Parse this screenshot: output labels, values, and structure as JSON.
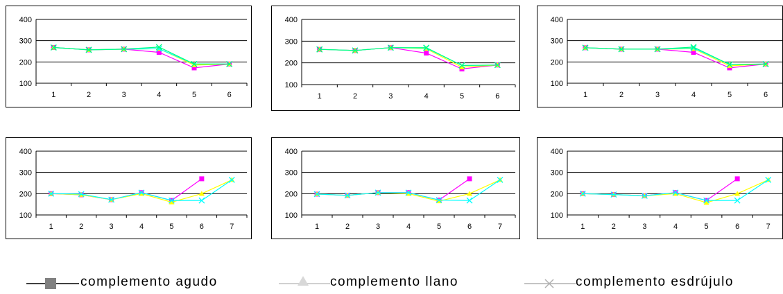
{
  "colors": {
    "series": [
      "#ff00ff",
      "#ffff00",
      "#00ffff",
      "#00ff80"
    ],
    "legend_agudo_line": "#000000",
    "legend_agudo_marker": "#808080",
    "legend_llano": "#c0c0c0",
    "legend_esdrujulo": "#b0b0b0"
  },
  "legend": {
    "items": [
      {
        "label": "complemento agudo",
        "marker": "square"
      },
      {
        "label": "complemento llano",
        "marker": "triangle"
      },
      {
        "label": "complemento esdrújulo",
        "marker": "x"
      }
    ]
  },
  "chart_data": [
    {
      "type": "line",
      "categories": [
        "1",
        "2",
        "3",
        "4",
        "5",
        "6"
      ],
      "ylim": [
        100,
        400
      ],
      "yticks": [
        "100",
        "200",
        "300",
        "400"
      ],
      "grid": true,
      "series": [
        {
          "values": [
            268,
            257,
            260,
            245,
            172,
            190
          ],
          "marker": "square"
        },
        {
          "values": [
            268,
            257,
            260,
            262,
            185,
            190
          ],
          "marker": "triangle"
        },
        {
          "values": [
            268,
            257,
            260,
            262,
            190,
            190
          ],
          "marker": "x"
        },
        {
          "values": [
            268,
            257,
            260,
            270,
            190,
            190
          ],
          "marker": "x"
        }
      ]
    },
    {
      "type": "line",
      "categories": [
        "1",
        "2",
        "3",
        "4",
        "5",
        "6"
      ],
      "ylim": [
        100,
        400
      ],
      "yticks": [
        "100",
        "200",
        "300",
        "400"
      ],
      "grid": true,
      "series": [
        {
          "values": [
            262,
            257,
            270,
            245,
            172,
            190
          ],
          "marker": "square"
        },
        {
          "values": [
            262,
            257,
            270,
            265,
            180,
            190
          ],
          "marker": "triangle"
        },
        {
          "values": [
            262,
            257,
            270,
            268,
            188,
            190
          ],
          "marker": "x"
        },
        {
          "values": [
            262,
            257,
            270,
            270,
            188,
            190
          ],
          "marker": "x"
        }
      ]
    },
    {
      "type": "line",
      "categories": [
        "1",
        "2",
        "3",
        "4",
        "5",
        "6"
      ],
      "ylim": [
        100,
        400
      ],
      "yticks": [
        "100",
        "200",
        "300",
        "400"
      ],
      "grid": true,
      "series": [
        {
          "values": [
            267,
            260,
            260,
            245,
            172,
            190
          ],
          "marker": "square"
        },
        {
          "values": [
            267,
            260,
            260,
            262,
            182,
            190
          ],
          "marker": "triangle"
        },
        {
          "values": [
            267,
            260,
            260,
            265,
            188,
            190
          ],
          "marker": "x"
        },
        {
          "values": [
            267,
            260,
            260,
            270,
            188,
            190
          ],
          "marker": "x"
        }
      ]
    },
    {
      "type": "line",
      "categories": [
        "1",
        "2",
        "3",
        "4",
        "5",
        "6",
        "7"
      ],
      "ylim": [
        100,
        400
      ],
      "yticks": [
        "100",
        "200",
        "300",
        "400"
      ],
      "grid": true,
      "series": [
        {
          "values": [
            200,
            195,
            172,
            205,
            168,
            270,
            null
          ],
          "marker": "square"
        },
        {
          "values": [
            200,
            195,
            172,
            200,
            160,
            200,
            265
          ],
          "marker": "triangle"
        },
        {
          "values": [
            200,
            198,
            172,
            205,
            168,
            168,
            265
          ],
          "marker": "x"
        }
      ]
    },
    {
      "type": "line",
      "categories": [
        "1",
        "2",
        "3",
        "4",
        "5",
        "6",
        "7"
      ],
      "ylim": [
        100,
        400
      ],
      "yticks": [
        "100",
        "200",
        "300",
        "400"
      ],
      "grid": true,
      "series": [
        {
          "values": [
            198,
            192,
            205,
            205,
            170,
            270,
            null
          ],
          "marker": "square"
        },
        {
          "values": [
            198,
            192,
            205,
            200,
            165,
            200,
            265
          ],
          "marker": "triangle"
        },
        {
          "values": [
            198,
            192,
            205,
            205,
            170,
            168,
            265
          ],
          "marker": "x"
        }
      ]
    },
    {
      "type": "line",
      "categories": [
        "1",
        "2",
        "3",
        "4",
        "5",
        "6",
        "7"
      ],
      "ylim": [
        100,
        400
      ],
      "yticks": [
        "100",
        "200",
        "300",
        "400"
      ],
      "grid": true,
      "series": [
        {
          "values": [
            200,
            196,
            190,
            205,
            168,
            270,
            null
          ],
          "marker": "square"
        },
        {
          "values": [
            200,
            196,
            190,
            200,
            158,
            200,
            265
          ],
          "marker": "triangle"
        },
        {
          "values": [
            200,
            196,
            190,
            205,
            168,
            168,
            265
          ],
          "marker": "x"
        }
      ]
    }
  ]
}
